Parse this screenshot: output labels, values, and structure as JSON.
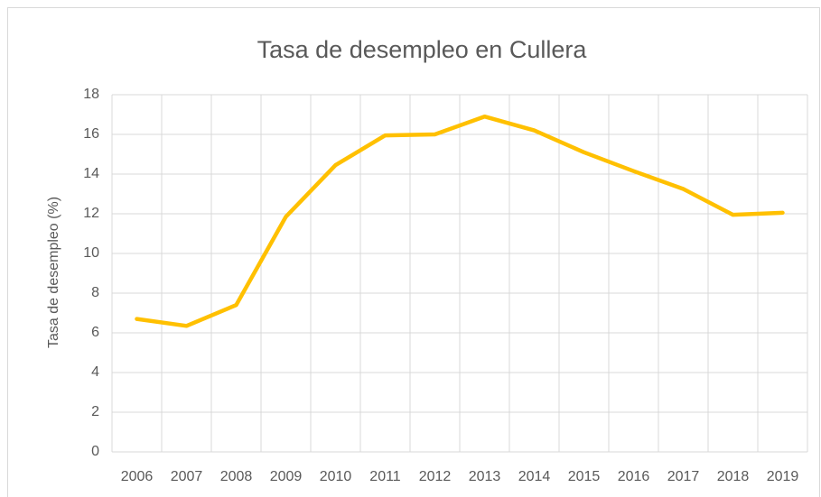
{
  "chart_data": {
    "type": "line",
    "title": "Tasa de desempleo en Cullera",
    "y_label": "Tasa de desempleo (%)",
    "categories": [
      "2006",
      "2007",
      "2008",
      "2009",
      "2010",
      "2011",
      "2012",
      "2013",
      "2014",
      "2015",
      "2016",
      "2017",
      "2018",
      "2019"
    ],
    "values": [
      6.7,
      6.35,
      7.4,
      11.85,
      14.45,
      15.95,
      16.0,
      16.9,
      16.2,
      15.1,
      14.15,
      13.25,
      11.95,
      12.05
    ],
    "color": "#ffc000",
    "ylim": [
      0,
      18
    ],
    "yticks": [
      0,
      2,
      4,
      6,
      8,
      10,
      12,
      14,
      16,
      18
    ],
    "grid": true
  }
}
